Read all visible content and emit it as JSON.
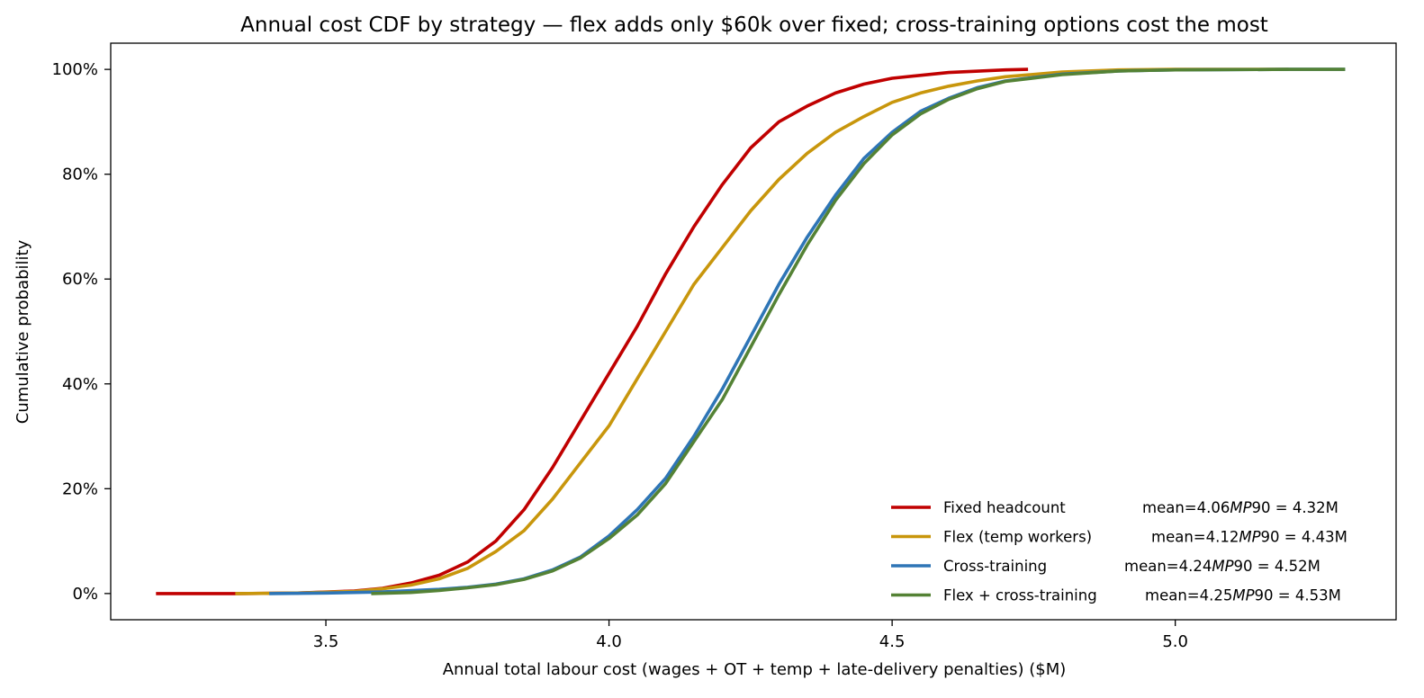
{
  "chart_data": {
    "type": "line",
    "title": "Annual cost CDF by strategy — flex adds only $60k over fixed; cross-training options cost the most",
    "xlabel": "Annual total labour cost (wages + OT + temp + late-delivery penalties)  ($M)",
    "ylabel": "Cumulative probability",
    "xlim": [
      3.12,
      5.39
    ],
    "ylim": [
      -0.05,
      1.05
    ],
    "x_ticks": [
      3.5,
      4.0,
      4.5,
      5.0
    ],
    "x_tick_labels": [
      "3.5",
      "4.0",
      "4.5",
      "5.0"
    ],
    "y_ticks": [
      0,
      0.2,
      0.4,
      0.6,
      0.8,
      1.0
    ],
    "y_tick_labels": [
      "0%",
      "20%",
      "40%",
      "60%",
      "80%",
      "100%"
    ],
    "grid": false,
    "legend_position": "bottom-right",
    "series": [
      {
        "name": "Fixed headcount",
        "color": "#c00000",
        "legend_mean": {
          "pre": "mean=4.06",
          "it": "MP",
          "post": "90 = 4.32M"
        },
        "points": [
          [
            3.2,
            0.0
          ],
          [
            3.35,
            0.0
          ],
          [
            3.45,
            0.001
          ],
          [
            3.55,
            0.005
          ],
          [
            3.6,
            0.01
          ],
          [
            3.65,
            0.02
          ],
          [
            3.7,
            0.035
          ],
          [
            3.75,
            0.06
          ],
          [
            3.8,
            0.1
          ],
          [
            3.85,
            0.16
          ],
          [
            3.9,
            0.24
          ],
          [
            3.95,
            0.33
          ],
          [
            4.0,
            0.42
          ],
          [
            4.05,
            0.51
          ],
          [
            4.1,
            0.61
          ],
          [
            4.15,
            0.7
          ],
          [
            4.2,
            0.78
          ],
          [
            4.25,
            0.85
          ],
          [
            4.3,
            0.9
          ],
          [
            4.35,
            0.93
          ],
          [
            4.4,
            0.955
          ],
          [
            4.45,
            0.972
          ],
          [
            4.5,
            0.983
          ],
          [
            4.6,
            0.994
          ],
          [
            4.7,
            0.999
          ],
          [
            4.74,
            1.0
          ]
        ]
      },
      {
        "name": "Flex (temp workers)",
        "color": "#c8960c",
        "legend_mean": {
          "pre": "mean=4.12",
          "it": "MP",
          "post": "90 = 4.43M"
        },
        "points": [
          [
            3.34,
            0.0
          ],
          [
            3.45,
            0.001
          ],
          [
            3.55,
            0.004
          ],
          [
            3.6,
            0.009
          ],
          [
            3.65,
            0.016
          ],
          [
            3.7,
            0.028
          ],
          [
            3.75,
            0.048
          ],
          [
            3.8,
            0.08
          ],
          [
            3.85,
            0.12
          ],
          [
            3.9,
            0.18
          ],
          [
            3.95,
            0.25
          ],
          [
            4.0,
            0.32
          ],
          [
            4.05,
            0.41
          ],
          [
            4.1,
            0.5
          ],
          [
            4.15,
            0.59
          ],
          [
            4.2,
            0.66
          ],
          [
            4.25,
            0.73
          ],
          [
            4.3,
            0.79
          ],
          [
            4.35,
            0.84
          ],
          [
            4.4,
            0.88
          ],
          [
            4.45,
            0.91
          ],
          [
            4.5,
            0.937
          ],
          [
            4.55,
            0.955
          ],
          [
            4.6,
            0.968
          ],
          [
            4.65,
            0.978
          ],
          [
            4.7,
            0.986
          ],
          [
            4.8,
            0.995
          ],
          [
            4.9,
            0.999
          ],
          [
            5.0,
            1.0
          ],
          [
            5.2,
            1.0
          ]
        ]
      },
      {
        "name": "Cross-training",
        "color": "#2e75b6",
        "legend_mean": {
          "pre": "mean=4.24",
          "it": "MP",
          "post": "90 = 4.52M"
        },
        "points": [
          [
            3.4,
            0.0
          ],
          [
            3.5,
            0.001
          ],
          [
            3.6,
            0.003
          ],
          [
            3.7,
            0.008
          ],
          [
            3.75,
            0.012
          ],
          [
            3.8,
            0.018
          ],
          [
            3.85,
            0.028
          ],
          [
            3.9,
            0.045
          ],
          [
            3.95,
            0.07
          ],
          [
            4.0,
            0.11
          ],
          [
            4.05,
            0.16
          ],
          [
            4.1,
            0.22
          ],
          [
            4.15,
            0.3
          ],
          [
            4.2,
            0.39
          ],
          [
            4.25,
            0.49
          ],
          [
            4.3,
            0.59
          ],
          [
            4.35,
            0.68
          ],
          [
            4.4,
            0.76
          ],
          [
            4.45,
            0.83
          ],
          [
            4.5,
            0.88
          ],
          [
            4.55,
            0.92
          ],
          [
            4.6,
            0.945
          ],
          [
            4.65,
            0.965
          ],
          [
            4.7,
            0.978
          ],
          [
            4.8,
            0.991
          ],
          [
            4.9,
            0.997
          ],
          [
            5.0,
            0.999
          ],
          [
            5.2,
            1.0
          ],
          [
            5.3,
            1.0
          ]
        ]
      },
      {
        "name": "Flex + cross-training",
        "color": "#548235",
        "legend_mean": {
          "pre": "mean=4.25",
          "it": "MP",
          "post": "90 = 4.53M"
        },
        "points": [
          [
            3.58,
            0.0
          ],
          [
            3.65,
            0.002
          ],
          [
            3.7,
            0.006
          ],
          [
            3.75,
            0.011
          ],
          [
            3.8,
            0.017
          ],
          [
            3.85,
            0.027
          ],
          [
            3.9,
            0.043
          ],
          [
            3.95,
            0.068
          ],
          [
            4.0,
            0.105
          ],
          [
            4.05,
            0.15
          ],
          [
            4.1,
            0.21
          ],
          [
            4.15,
            0.29
          ],
          [
            4.2,
            0.37
          ],
          [
            4.25,
            0.47
          ],
          [
            4.3,
            0.57
          ],
          [
            4.35,
            0.665
          ],
          [
            4.4,
            0.75
          ],
          [
            4.45,
            0.82
          ],
          [
            4.5,
            0.875
          ],
          [
            4.55,
            0.915
          ],
          [
            4.6,
            0.943
          ],
          [
            4.65,
            0.963
          ],
          [
            4.7,
            0.977
          ],
          [
            4.8,
            0.99
          ],
          [
            4.9,
            0.997
          ],
          [
            5.0,
            0.999
          ],
          [
            5.2,
            1.0
          ],
          [
            5.3,
            1.0
          ]
        ]
      }
    ]
  }
}
